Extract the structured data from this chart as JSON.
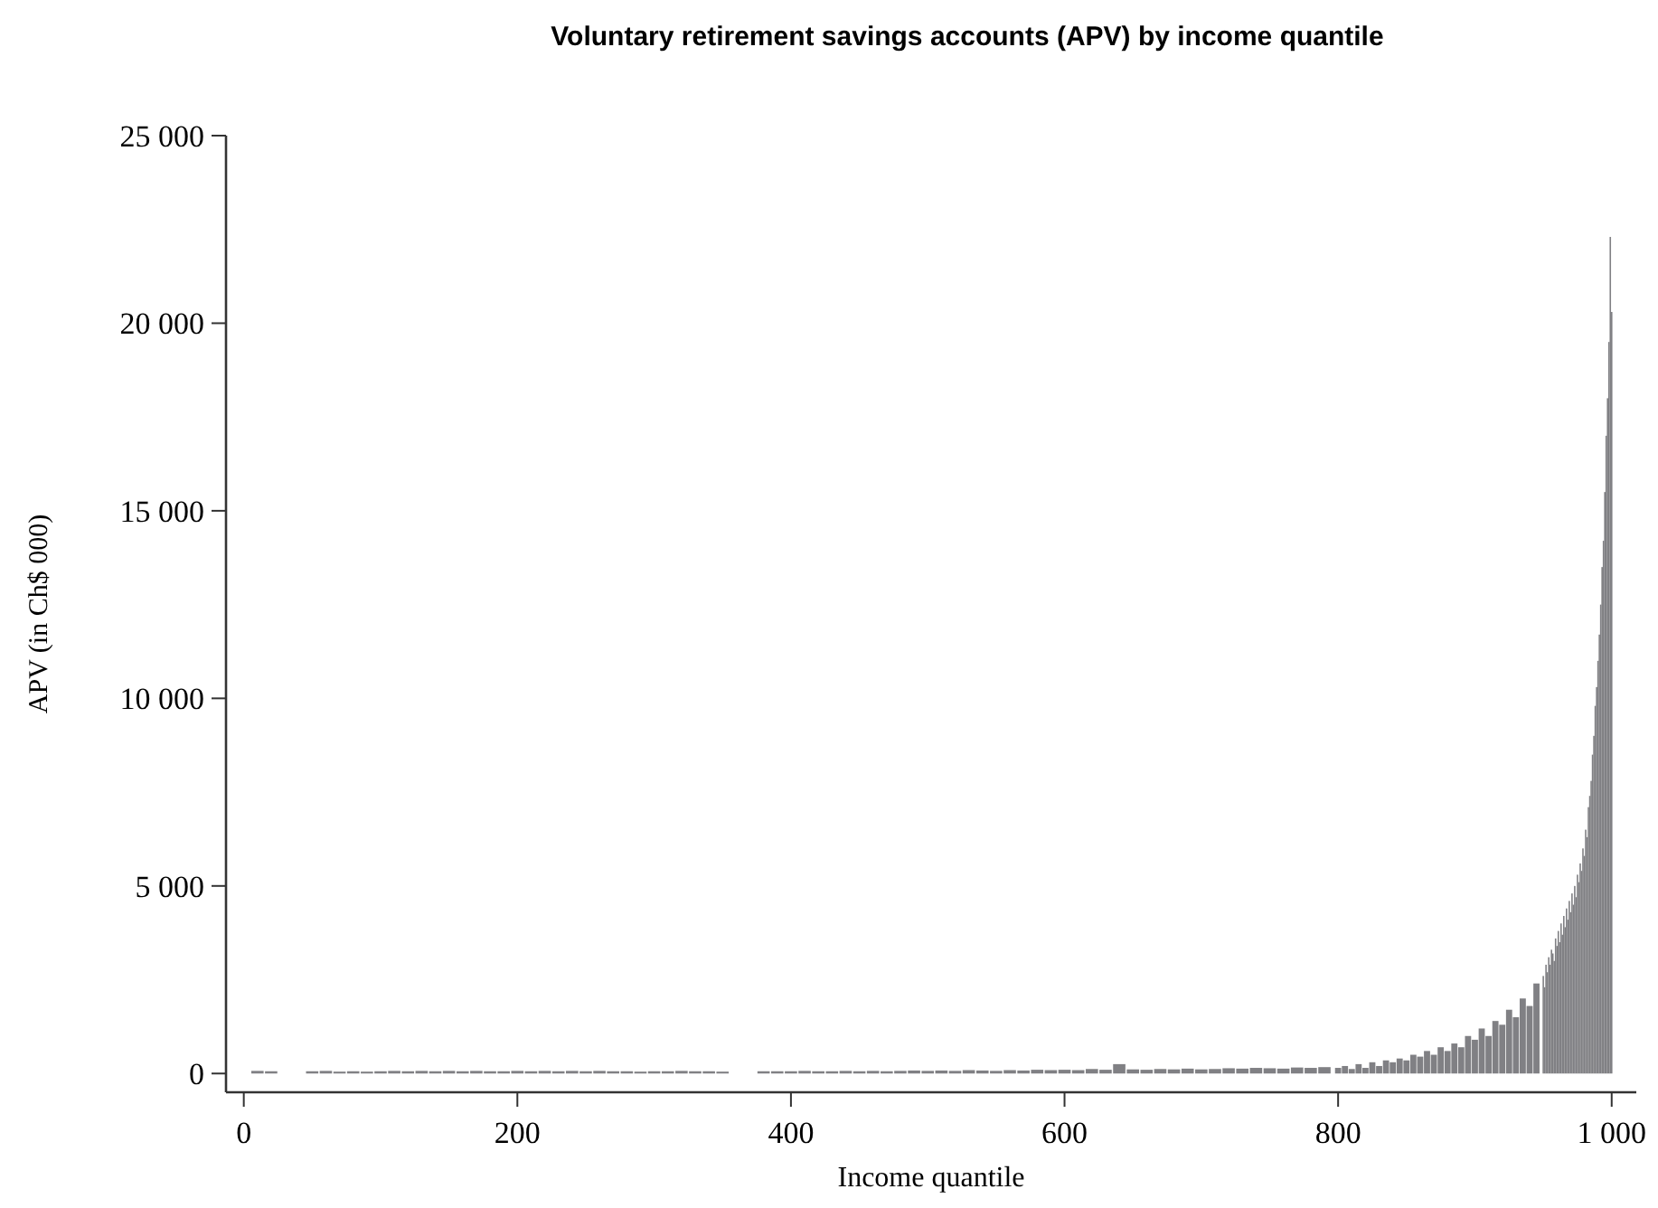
{
  "chart_data": {
    "type": "bar",
    "title": "Voluntary retirement savings accounts (APV) by income quantile",
    "xlabel": "Income quantile",
    "ylabel": "APV (in Ch$ 000)",
    "color": "#808084",
    "x": [
      10,
      20,
      30,
      40,
      50,
      60,
      70,
      80,
      90,
      100,
      110,
      120,
      130,
      140,
      150,
      160,
      170,
      180,
      190,
      200,
      210,
      220,
      230,
      240,
      250,
      260,
      270,
      280,
      290,
      300,
      310,
      320,
      330,
      340,
      350,
      360,
      370,
      380,
      390,
      400,
      410,
      420,
      430,
      440,
      450,
      460,
      470,
      480,
      490,
      500,
      510,
      520,
      530,
      540,
      550,
      560,
      570,
      580,
      590,
      600,
      610,
      620,
      630,
      640,
      650,
      660,
      670,
      680,
      690,
      700,
      710,
      720,
      730,
      740,
      750,
      760,
      770,
      780,
      790,
      800,
      805,
      810,
      815,
      820,
      825,
      830,
      835,
      840,
      845,
      850,
      855,
      860,
      865,
      870,
      875,
      880,
      885,
      890,
      895,
      900,
      905,
      910,
      915,
      920,
      925,
      930,
      935,
      940,
      945,
      950,
      951,
      952,
      953,
      954,
      955,
      956,
      957,
      958,
      959,
      960,
      961,
      962,
      963,
      964,
      965,
      966,
      967,
      968,
      969,
      970,
      971,
      972,
      973,
      974,
      975,
      976,
      977,
      978,
      979,
      980,
      981,
      982,
      983,
      984,
      985,
      986,
      987,
      988,
      989,
      990,
      991,
      992,
      993,
      994,
      995,
      996,
      997,
      998,
      999,
      1000
    ],
    "values": [
      70,
      60,
      null,
      null,
      60,
      70,
      50,
      60,
      50,
      60,
      70,
      60,
      70,
      60,
      70,
      60,
      70,
      60,
      60,
      70,
      60,
      70,
      60,
      70,
      60,
      70,
      60,
      60,
      50,
      60,
      60,
      70,
      60,
      60,
      50,
      null,
      null,
      60,
      60,
      60,
      70,
      60,
      60,
      70,
      60,
      70,
      60,
      70,
      80,
      70,
      80,
      70,
      90,
      80,
      70,
      90,
      80,
      100,
      90,
      100,
      90,
      120,
      100,
      250,
      110,
      100,
      120,
      110,
      130,
      110,
      120,
      140,
      130,
      150,
      140,
      130,
      160,
      150,
      170,
      150,
      200,
      120,
      250,
      150,
      300,
      200,
      350,
      300,
      400,
      350,
      500,
      450,
      600,
      500,
      700,
      600,
      800,
      700,
      1000,
      900,
      1200,
      1000,
      1400,
      1300,
      1700,
      1500,
      2000,
      1800,
      2400,
      2600,
      2300,
      2900,
      2700,
      3100,
      2900,
      3300,
      3200,
      3000,
      3600,
      3400,
      3800,
      3500,
      4000,
      3700,
      4200,
      3900,
      4400,
      4100,
      4600,
      4300,
      4800,
      4500,
      5000,
      4700,
      5300,
      5100,
      5600,
      5400,
      6000,
      5800,
      6500,
      6300,
      7100,
      7400,
      7800,
      8500,
      9000,
      9800,
      10300,
      11000,
      11700,
      12500,
      13500,
      14200,
      15500,
      17000,
      18000,
      19500,
      22300,
      20300
    ],
    "xlim": [
      -13,
      1018
    ],
    "xticks": [
      0,
      200,
      400,
      600,
      800,
      {
        "value": 1000,
        "label": "1 000"
      }
    ],
    "ylim": [
      -500,
      25000
    ],
    "yticks": [
      0,
      {
        "value": 5000,
        "label": "5 000"
      },
      {
        "value": 10000,
        "label": "10 000"
      },
      {
        "value": 15000,
        "label": "15 000"
      },
      {
        "value": 20000,
        "label": "20 000"
      },
      {
        "value": 25000,
        "label": "25 000"
      }
    ],
    "grid": false
  }
}
